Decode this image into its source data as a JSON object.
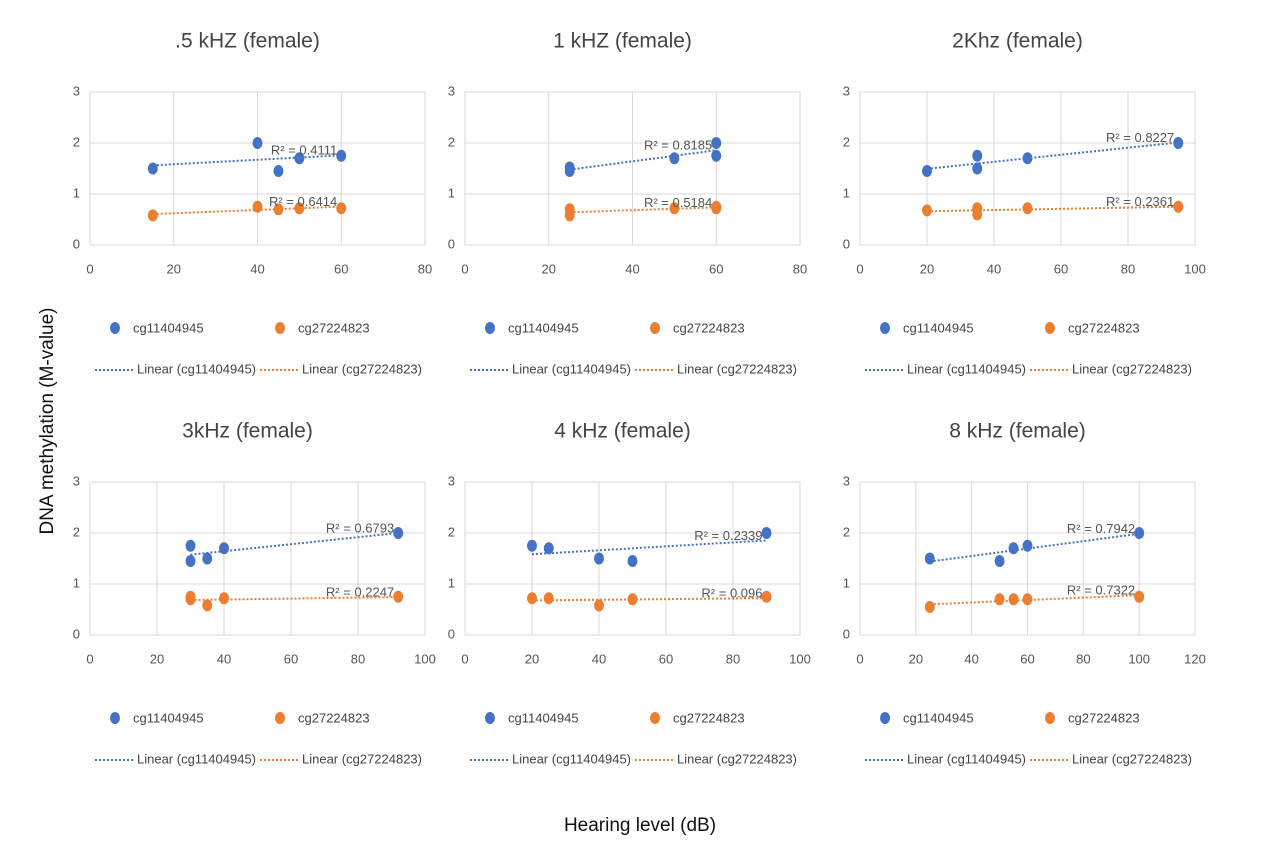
{
  "xlabel": "Hearing level (dB)",
  "ylabel": "DNA methylation (M-value)",
  "chart_data": [
    {
      "type": "scatter",
      "title": ".5 kHZ (female)",
      "xlim": [
        0,
        80
      ],
      "xticks": [
        0,
        20,
        40,
        60,
        80
      ],
      "ylim": [
        0,
        3
      ],
      "yticks": [
        0,
        1,
        2,
        3
      ],
      "grid": true,
      "series": [
        {
          "name": "cg11404945",
          "color": "#4472c4",
          "x": [
            15,
            40,
            45,
            50,
            60
          ],
          "values": [
            1.5,
            2.0,
            1.45,
            1.7,
            1.75
          ],
          "trendline": "Linear (cg11404945)",
          "r2_label": "R² = 0.4111"
        },
        {
          "name": "cg27224823",
          "color": "#ed7d31",
          "x": [
            15,
            40,
            45,
            50,
            60
          ],
          "values": [
            0.58,
            0.75,
            0.7,
            0.72,
            0.72
          ],
          "trendline": "Linear (cg27224823)",
          "r2_label": "R² = 0.6414"
        }
      ]
    },
    {
      "type": "scatter",
      "title": "1 kHZ (female)",
      "xlim": [
        0,
        80
      ],
      "xticks": [
        0,
        20,
        40,
        60,
        80
      ],
      "ylim": [
        0,
        3
      ],
      "yticks": [
        0,
        1,
        2,
        3
      ],
      "grid": true,
      "series": [
        {
          "name": "cg11404945",
          "color": "#4472c4",
          "x": [
            25,
            25,
            50,
            60,
            60
          ],
          "values": [
            1.45,
            1.52,
            1.7,
            2.0,
            1.75
          ],
          "trendline": "Linear (cg11404945)",
          "r2_label": "R² = 0.8185"
        },
        {
          "name": "cg27224823",
          "color": "#ed7d31",
          "x": [
            25,
            25,
            50,
            60,
            60
          ],
          "values": [
            0.58,
            0.7,
            0.72,
            0.72,
            0.75
          ],
          "trendline": "Linear (cg27224823)",
          "r2_label": "R² = 0.5184"
        }
      ]
    },
    {
      "type": "scatter",
      "title": "2Khz (female)",
      "xlim": [
        0,
        100
      ],
      "xticks": [
        0,
        20,
        40,
        60,
        80,
        100
      ],
      "ylim": [
        0,
        3
      ],
      "yticks": [
        0,
        1,
        2,
        3
      ],
      "grid": true,
      "series": [
        {
          "name": "cg11404945",
          "color": "#4472c4",
          "x": [
            20,
            35,
            35,
            50,
            95
          ],
          "values": [
            1.45,
            1.5,
            1.75,
            1.7,
            2.0
          ],
          "trendline": "Linear (cg11404945)",
          "r2_label": "R² = 0.8227"
        },
        {
          "name": "cg27224823",
          "color": "#ed7d31",
          "x": [
            20,
            35,
            35,
            50,
            95
          ],
          "values": [
            0.68,
            0.6,
            0.72,
            0.72,
            0.75
          ],
          "trendline": "Linear (cg27224823)",
          "r2_label": "R² = 0.2361"
        }
      ]
    },
    {
      "type": "scatter",
      "title": "3kHz (female)",
      "xlim": [
        0,
        100
      ],
      "xticks": [
        0,
        20,
        40,
        60,
        80,
        100
      ],
      "ylim": [
        0,
        3
      ],
      "yticks": [
        0,
        1,
        2,
        3
      ],
      "grid": true,
      "series": [
        {
          "name": "cg11404945",
          "color": "#4472c4",
          "x": [
            30,
            30,
            35,
            40,
            92
          ],
          "values": [
            1.45,
            1.75,
            1.5,
            1.7,
            2.0
          ],
          "trendline": "Linear (cg11404945)",
          "r2_label": "R² = 0.6793"
        },
        {
          "name": "cg27224823",
          "color": "#ed7d31",
          "x": [
            30,
            30,
            35,
            40,
            92
          ],
          "values": [
            0.7,
            0.75,
            0.58,
            0.72,
            0.75
          ],
          "trendline": "Linear (cg27224823)",
          "r2_label": "R² = 0.2247"
        }
      ]
    },
    {
      "type": "scatter",
      "title": "4 kHz (female)",
      "xlim": [
        0,
        100
      ],
      "xticks": [
        0,
        20,
        40,
        60,
        80,
        100
      ],
      "ylim": [
        0,
        3
      ],
      "yticks": [
        0,
        1,
        2,
        3
      ],
      "grid": true,
      "series": [
        {
          "name": "cg11404945",
          "color": "#4472c4",
          "x": [
            20,
            25,
            40,
            50,
            90
          ],
          "values": [
            1.75,
            1.7,
            1.5,
            1.45,
            2.0
          ],
          "trendline": "Linear (cg11404945)",
          "r2_label": "R² = 0.2339"
        },
        {
          "name": "cg27224823",
          "color": "#ed7d31",
          "x": [
            20,
            25,
            40,
            50,
            90
          ],
          "values": [
            0.72,
            0.72,
            0.58,
            0.7,
            0.75
          ],
          "trendline": "Linear (cg27224823)",
          "r2_label": "R² = 0.096"
        }
      ]
    },
    {
      "type": "scatter",
      "title": "8 kHz (female)",
      "xlim": [
        0,
        120
      ],
      "xticks": [
        0,
        20,
        40,
        60,
        80,
        100,
        120
      ],
      "ylim": [
        0,
        3
      ],
      "yticks": [
        0,
        1,
        2,
        3
      ],
      "grid": true,
      "series": [
        {
          "name": "cg11404945",
          "color": "#4472c4",
          "x": [
            25,
            50,
            55,
            60,
            100
          ],
          "values": [
            1.5,
            1.45,
            1.7,
            1.75,
            2.0
          ],
          "trendline": "Linear (cg11404945)",
          "r2_label": "R² = 0.7942"
        },
        {
          "name": "cg27224823",
          "color": "#ed7d31",
          "x": [
            25,
            50,
            55,
            60,
            100
          ],
          "values": [
            0.55,
            0.7,
            0.7,
            0.7,
            0.75
          ],
          "trendline": "Linear (cg27224823)",
          "r2_label": "R² = 0.7322"
        }
      ]
    }
  ]
}
